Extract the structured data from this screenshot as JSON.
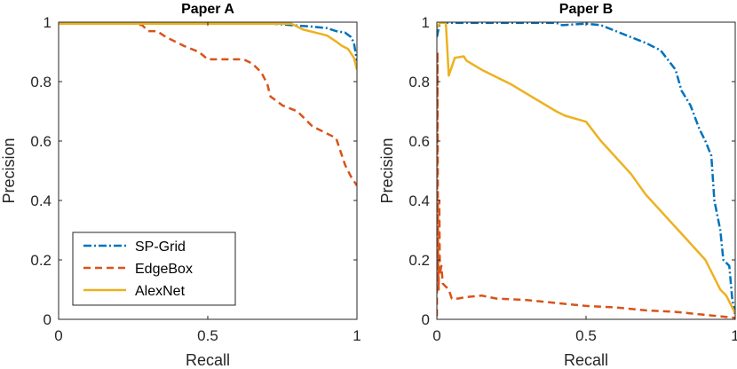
{
  "chart_data": [
    {
      "type": "line",
      "title": "Paper A",
      "xlabel": "Recall",
      "ylabel": "Precision",
      "xlim": [
        0,
        1
      ],
      "ylim": [
        0,
        1
      ],
      "xticks": [
        "0",
        "0.5",
        "1"
      ],
      "yticks": [
        "0",
        "0.2",
        "0.4",
        "0.6",
        "0.8",
        "1"
      ],
      "legend": "bottom-left",
      "series": [
        {
          "name": "SP-Grid",
          "color": "#0072BD",
          "dash": "dashdot",
          "points": [
            [
              0,
              0.995
            ],
            [
              0.2,
              0.995
            ],
            [
              0.4,
              0.995
            ],
            [
              0.6,
              0.995
            ],
            [
              0.72,
              0.995
            ],
            [
              0.78,
              0.99
            ],
            [
              0.85,
              0.985
            ],
            [
              0.9,
              0.98
            ],
            [
              0.93,
              0.97
            ],
            [
              0.96,
              0.965
            ],
            [
              0.98,
              0.95
            ],
            [
              0.99,
              0.93
            ],
            [
              1.0,
              0.87
            ]
          ]
        },
        {
          "name": "EdgeBox",
          "color": "#D95319",
          "dash": "dashed",
          "points": [
            [
              0,
              0.995
            ],
            [
              0.25,
              0.995
            ],
            [
              0.28,
              0.99
            ],
            [
              0.3,
              0.97
            ],
            [
              0.33,
              0.97
            ],
            [
              0.36,
              0.95
            ],
            [
              0.42,
              0.92
            ],
            [
              0.47,
              0.9
            ],
            [
              0.5,
              0.875
            ],
            [
              0.62,
              0.875
            ],
            [
              0.65,
              0.86
            ],
            [
              0.68,
              0.83
            ],
            [
              0.7,
              0.79
            ],
            [
              0.71,
              0.75
            ],
            [
              0.75,
              0.72
            ],
            [
              0.8,
              0.7
            ],
            [
              0.83,
              0.67
            ],
            [
              0.85,
              0.65
            ],
            [
              0.9,
              0.625
            ],
            [
              0.93,
              0.61
            ],
            [
              0.95,
              0.55
            ],
            [
              0.96,
              0.52
            ],
            [
              0.98,
              0.48
            ],
            [
              1.0,
              0.45
            ]
          ]
        },
        {
          "name": "AlexNet",
          "color": "#EDB120",
          "dash": "solid",
          "points": [
            [
              0,
              0.995
            ],
            [
              0.5,
              0.995
            ],
            [
              0.78,
              0.995
            ],
            [
              0.82,
              0.975
            ],
            [
              0.86,
              0.965
            ],
            [
              0.9,
              0.955
            ],
            [
              0.93,
              0.935
            ],
            [
              0.95,
              0.92
            ],
            [
              0.97,
              0.91
            ],
            [
              0.99,
              0.88
            ],
            [
              1.0,
              0.84
            ]
          ]
        }
      ]
    },
    {
      "type": "line",
      "title": "Paper B",
      "xlabel": "Recall",
      "ylabel": "Precision",
      "xlim": [
        0,
        1
      ],
      "ylim": [
        0,
        1
      ],
      "xticks": [
        "0",
        "0.5",
        "1"
      ],
      "yticks": [
        "0",
        "0.2",
        "0.4",
        "0.6",
        "0.8",
        "1"
      ],
      "series": [
        {
          "name": "SP-Grid",
          "color": "#0072BD",
          "dash": "dashdot",
          "points": [
            [
              0,
              0.95
            ],
            [
              0.01,
              0.998
            ],
            [
              0.1,
              0.998
            ],
            [
              0.3,
              0.998
            ],
            [
              0.4,
              0.998
            ],
            [
              0.42,
              0.99
            ],
            [
              0.5,
              0.995
            ],
            [
              0.55,
              0.99
            ],
            [
              0.6,
              0.97
            ],
            [
              0.65,
              0.95
            ],
            [
              0.7,
              0.93
            ],
            [
              0.75,
              0.905
            ],
            [
              0.8,
              0.84
            ],
            [
              0.82,
              0.77
            ],
            [
              0.85,
              0.72
            ],
            [
              0.88,
              0.64
            ],
            [
              0.9,
              0.6
            ],
            [
              0.92,
              0.55
            ],
            [
              0.93,
              0.4
            ],
            [
              0.95,
              0.3
            ],
            [
              0.96,
              0.2
            ],
            [
              0.98,
              0.18
            ],
            [
              0.99,
              0.07
            ],
            [
              1.0,
              0.01
            ]
          ]
        },
        {
          "name": "EdgeBox",
          "color": "#D95319",
          "dash": "dashed",
          "points": [
            [
              0,
              0.01
            ],
            [
              0.002,
              0.9
            ],
            [
              0.004,
              0.2
            ],
            [
              0.006,
              0.1
            ],
            [
              0.008,
              0.4
            ],
            [
              0.01,
              0.15
            ],
            [
              0.015,
              0.18
            ],
            [
              0.02,
              0.12
            ],
            [
              0.04,
              0.1
            ],
            [
              0.05,
              0.07
            ],
            [
              0.07,
              0.07
            ],
            [
              0.1,
              0.075
            ],
            [
              0.15,
              0.08
            ],
            [
              0.2,
              0.07
            ],
            [
              0.3,
              0.065
            ],
            [
              0.4,
              0.055
            ],
            [
              0.5,
              0.045
            ],
            [
              0.6,
              0.04
            ],
            [
              0.7,
              0.03
            ],
            [
              0.8,
              0.025
            ],
            [
              0.9,
              0.015
            ],
            [
              1.0,
              0.005
            ]
          ]
        },
        {
          "name": "AlexNet",
          "color": "#EDB120",
          "dash": "solid",
          "points": [
            [
              0,
              0.98
            ],
            [
              0.01,
              0.998
            ],
            [
              0.03,
              0.998
            ],
            [
              0.04,
              0.82
            ],
            [
              0.06,
              0.88
            ],
            [
              0.09,
              0.885
            ],
            [
              0.1,
              0.87
            ],
            [
              0.15,
              0.84
            ],
            [
              0.2,
              0.815
            ],
            [
              0.25,
              0.79
            ],
            [
              0.3,
              0.76
            ],
            [
              0.4,
              0.7
            ],
            [
              0.43,
              0.685
            ],
            [
              0.5,
              0.665
            ],
            [
              0.55,
              0.6
            ],
            [
              0.65,
              0.49
            ],
            [
              0.7,
              0.42
            ],
            [
              0.8,
              0.31
            ],
            [
              0.9,
              0.2
            ],
            [
              0.95,
              0.1
            ],
            [
              0.97,
              0.08
            ],
            [
              1.0,
              0.02
            ]
          ]
        }
      ]
    }
  ]
}
